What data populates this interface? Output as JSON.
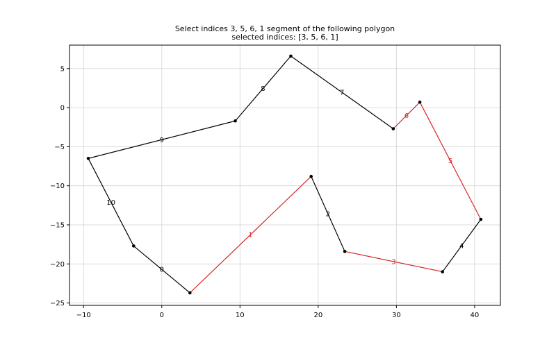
{
  "chart_data": {
    "type": "line",
    "title": "Select indices 3, 5, 6, 1 segment of the following polygon",
    "subtitle": "selected indices: [3, 5, 6, 1]",
    "xlabel": "",
    "ylabel": "",
    "xlim": [
      -11.8,
      43.3
    ],
    "ylim": [
      -25.3,
      8.0
    ],
    "xticks": [
      -10,
      0,
      10,
      20,
      30,
      40
    ],
    "yticks": [
      5,
      0,
      -5,
      -10,
      -15,
      -20,
      -25
    ],
    "xtick_labels": [
      "−10",
      "0",
      "10",
      "20",
      "30",
      "40"
    ],
    "ytick_labels": [
      "5",
      "0",
      "−5",
      "−10",
      "−15",
      "−20",
      "−25"
    ],
    "grid": true,
    "vertices": [
      {
        "x": -3.6,
        "y": -17.7
      },
      {
        "x": 3.6,
        "y": -23.7
      },
      {
        "x": 19.1,
        "y": -8.8
      },
      {
        "x": 23.4,
        "y": -18.4
      },
      {
        "x": 35.9,
        "y": -21.0
      },
      {
        "x": 40.8,
        "y": -14.3
      },
      {
        "x": 33.0,
        "y": 0.7
      },
      {
        "x": 29.6,
        "y": -2.7
      },
      {
        "x": 16.5,
        "y": 6.6
      },
      {
        "x": 9.4,
        "y": -1.7
      },
      {
        "x": -9.4,
        "y": -6.5
      }
    ],
    "segments": [
      {
        "label": "0",
        "from": 0,
        "to": 1,
        "selected": false
      },
      {
        "label": "1",
        "from": 1,
        "to": 2,
        "selected": true
      },
      {
        "label": "2",
        "from": 2,
        "to": 3,
        "selected": false
      },
      {
        "label": "3",
        "from": 3,
        "to": 4,
        "selected": true
      },
      {
        "label": "4",
        "from": 4,
        "to": 5,
        "selected": false
      },
      {
        "label": "5",
        "from": 5,
        "to": 6,
        "selected": true
      },
      {
        "label": "6",
        "from": 6,
        "to": 7,
        "selected": true
      },
      {
        "label": "7",
        "from": 7,
        "to": 8,
        "selected": false
      },
      {
        "label": "8",
        "from": 8,
        "to": 9,
        "selected": false
      },
      {
        "label": "9",
        "from": 9,
        "to": 10,
        "selected": false
      },
      {
        "label": "10",
        "from": 10,
        "to": 0,
        "selected": false
      }
    ],
    "colors": {
      "normal": "#000000",
      "selected": "#d62728",
      "grid": "#d3d3d3",
      "vertex": "#000000"
    }
  }
}
